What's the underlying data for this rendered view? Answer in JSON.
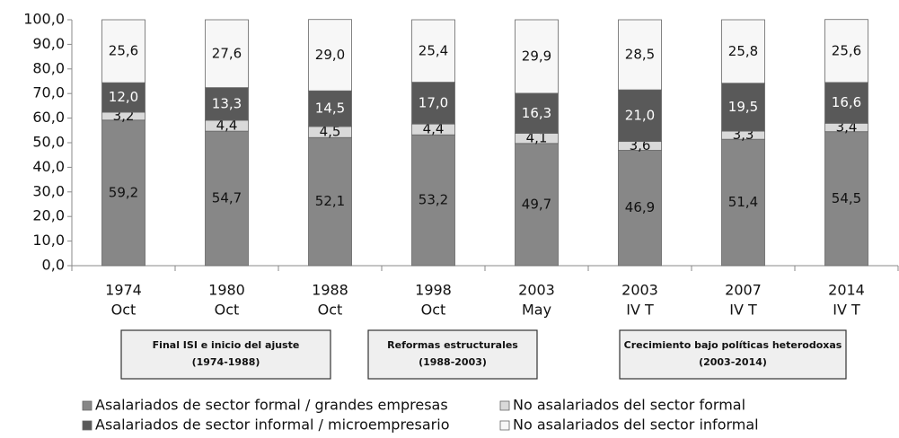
{
  "chart_data": {
    "type": "stacked_bar",
    "categories": [
      [
        "1974",
        "Oct"
      ],
      [
        "1980",
        "Oct"
      ],
      [
        "1988",
        "Oct"
      ],
      [
        "1998",
        "Oct"
      ],
      [
        "2003",
        "May"
      ],
      [
        "2003",
        "IV T"
      ],
      [
        "2007",
        "IV T"
      ],
      [
        "2014",
        "IV T"
      ]
    ],
    "series": [
      {
        "name": "Asalariados de sector formal / grandes empresas",
        "color": "#878787",
        "label_color": "#111111",
        "values": [
          59.2,
          54.7,
          52.1,
          53.2,
          49.7,
          46.9,
          51.4,
          54.5
        ],
        "value_labels": [
          "59,2",
          "54,7",
          "52,1",
          "53,2",
          "49,7",
          "46,9",
          "51,4",
          "54,5"
        ]
      },
      {
        "name": "No asalariados del sector formal",
        "color": "#d9d9d9",
        "label_color": "#111111",
        "values": [
          3.2,
          4.4,
          4.5,
          4.4,
          4.1,
          3.6,
          3.3,
          3.4
        ],
        "value_labels": [
          "3,2",
          "4,4",
          "4,5",
          "4,4",
          "4,1",
          "3,6",
          "3,3",
          "3,4"
        ]
      },
      {
        "name": "Asalariados de sector informal / microempresario",
        "color": "#595959",
        "label_color": "#ffffff",
        "values": [
          12.0,
          13.3,
          14.5,
          17.0,
          16.3,
          21.0,
          19.5,
          16.6
        ],
        "value_labels": [
          "12,0",
          "13,3",
          "14,5",
          "17,0",
          "16,3",
          "21,0",
          "19,5",
          "16,6"
        ]
      },
      {
        "name": "No asalariados del sector informal",
        "color": "#f7f7f7",
        "label_color": "#111111",
        "values": [
          25.6,
          27.6,
          29.0,
          25.4,
          29.9,
          28.5,
          25.8,
          25.6
        ],
        "value_labels": [
          "25,6",
          "27,6",
          "29,0",
          "25,4",
          "29,9",
          "28,5",
          "25,8",
          "25,6"
        ]
      }
    ],
    "ylim": [
      0,
      100
    ],
    "yticks": [
      {
        "value": 0,
        "label": "0,0"
      },
      {
        "value": 10,
        "label": "10,0"
      },
      {
        "value": 20,
        "label": "20,0"
      },
      {
        "value": 30,
        "label": "30,0"
      },
      {
        "value": 40,
        "label": "40,0"
      },
      {
        "value": 50,
        "label": "50,0"
      },
      {
        "value": 60,
        "label": "60,0"
      },
      {
        "value": 70,
        "label": "70,0"
      },
      {
        "value": 80,
        "label": "80,0"
      },
      {
        "value": 90,
        "label": "90,0"
      },
      {
        "value": 100,
        "label": "100,0"
      }
    ],
    "periods": [
      {
        "lines": [
          "Final ISI e inicio del ajuste",
          "(1974-1988)"
        ]
      },
      {
        "lines": [
          "Reformas estructurales",
          "(1988-2003)"
        ]
      },
      {
        "lines": [
          "Crecimiento bajo políticas heterodoxas",
          "(2003-2014)"
        ]
      }
    ]
  }
}
